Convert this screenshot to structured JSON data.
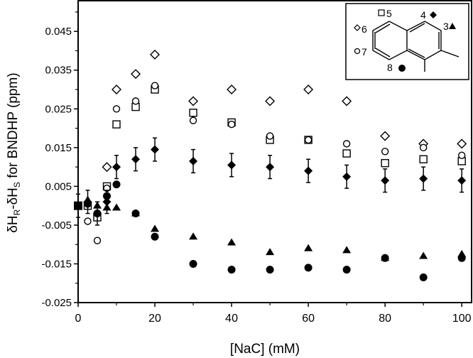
{
  "chart_data": {
    "type": "scatter",
    "xlabel": "[NaC] (mM)",
    "ylabel": "δH_R-δH_S for BNDHP (ppm)",
    "xlim": [
      0,
      102
    ],
    "ylim": [
      -0.025,
      0.052
    ],
    "xticks": [
      "0",
      "20",
      "40",
      "60",
      "80",
      "100"
    ],
    "yticks": [
      "0.045",
      "0.035",
      "0.025",
      "0.015",
      "0.005",
      "-0.005",
      "-0.015",
      "-0.025"
    ],
    "grid": false,
    "x": [
      0,
      2.5,
      5,
      7.5,
      10,
      15,
      20,
      30,
      40,
      50,
      60,
      70,
      80,
      90,
      100
    ],
    "series": [
      {
        "name": "6",
        "marker": "open-diamond",
        "values": [
          null,
          null,
          null,
          0.01,
          0.03,
          0.034,
          0.039,
          0.027,
          0.03,
          0.027,
          0.03,
          0.027,
          0.018,
          0.016,
          0.016
        ]
      },
      {
        "name": "5",
        "marker": "open-square",
        "values": [
          0,
          0.0,
          -0.003,
          0.005,
          0.021,
          0.0255,
          0.03,
          0.024,
          0.0215,
          0.017,
          0.017,
          0.0135,
          0.011,
          0.012,
          0.0115
        ]
      },
      {
        "name": "7",
        "marker": "open-circle",
        "values": [
          null,
          -0.004,
          -0.009,
          0.0045,
          0.025,
          0.027,
          0.031,
          0.022,
          0.021,
          0.018,
          0.017,
          0.016,
          0.014,
          0.015,
          0.013
        ]
      },
      {
        "name": "4",
        "marker": "filled-diamond",
        "values": [
          0,
          0.001,
          -0.002,
          0.001,
          0.01,
          0.012,
          0.0145,
          0.0115,
          0.0105,
          0.01,
          0.009,
          0.0075,
          0.0065,
          0.007,
          0.0065
        ],
        "error": 0.003
      },
      {
        "name": "3",
        "marker": "filled-triangle",
        "values": [
          0,
          0.0015,
          0.0,
          -0.0005,
          -0.0005,
          -0.002,
          -0.006,
          -0.008,
          -0.0095,
          -0.012,
          -0.011,
          -0.0115,
          -0.0135,
          -0.013,
          -0.0125
        ]
      },
      {
        "name": "8",
        "marker": "filled-circle",
        "values": [
          0,
          0.0005,
          -0.002,
          0.0025,
          0.0055,
          -0.002,
          -0.008,
          -0.015,
          -0.0165,
          -0.0165,
          -0.016,
          -0.0165,
          -0.0135,
          -0.0185,
          -0.0135
        ]
      }
    ],
    "inset_labels": {
      "p5": "5",
      "p4": "4",
      "p6": "6",
      "p3": "3",
      "p7": "7",
      "p8": "8"
    }
  }
}
